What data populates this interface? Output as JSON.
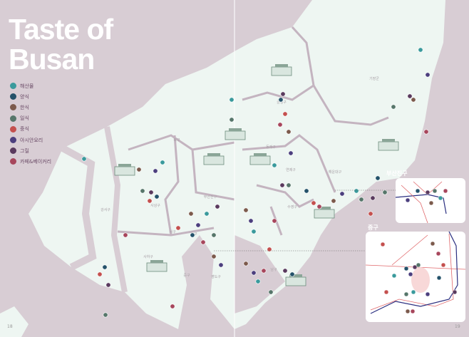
{
  "title": [
    "Taste of",
    "Busan"
  ],
  "legend": [
    {
      "label": "해산물",
      "color": "#3a9a9c"
    },
    {
      "label": "양식",
      "color": "#24526a"
    },
    {
      "label": "한식",
      "color": "#7c5a4c"
    },
    {
      "label": "일식",
      "color": "#56766a"
    },
    {
      "label": "중식",
      "color": "#c4504e"
    },
    {
      "label": "아시안요리",
      "color": "#4c3f7e"
    },
    {
      "label": "그릴",
      "color": "#5a3a5e"
    },
    {
      "label": "카페&베이커리",
      "color": "#a7465c"
    }
  ],
  "districts": [
    "북구",
    "강서구",
    "사상구",
    "사하구",
    "서구",
    "동구",
    "중구",
    "영도구",
    "부산진구",
    "동래구",
    "금정구",
    "연제구",
    "수영구",
    "남구",
    "해운대구",
    "기장군"
  ],
  "insets": {
    "busanjin": "부산진구",
    "junggu": "중구"
  },
  "page_numbers": [
    "18",
    "19"
  ],
  "colors": {
    "land": "#eef6f2",
    "water": "#d8cdd4",
    "border": "#c4b4c0",
    "subway_red": "#e0676a",
    "subway_blue": "#2b2f80"
  }
}
